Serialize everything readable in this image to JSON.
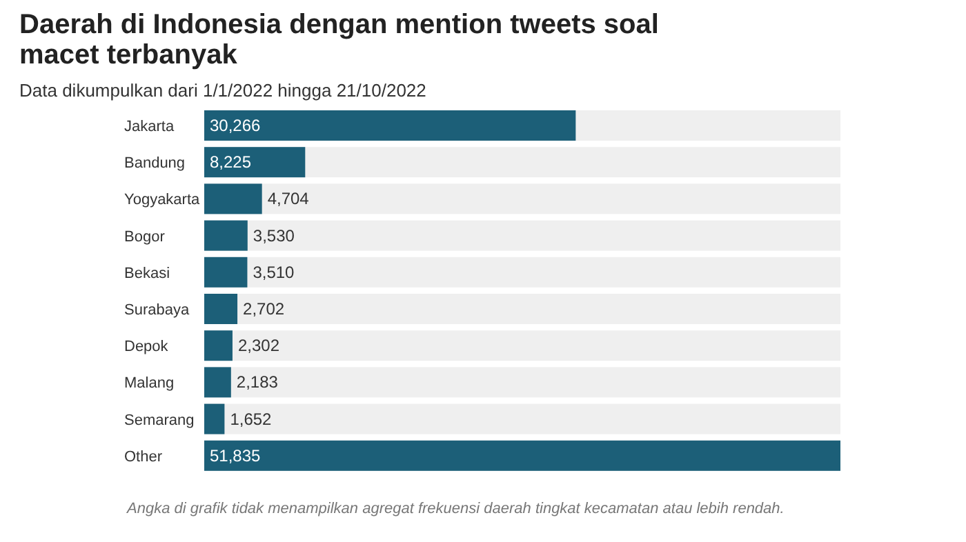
{
  "chart_data": {
    "type": "bar",
    "orientation": "horizontal",
    "title": "Daerah di Indonesia dengan mention tweets soal macet terbanyak",
    "subtitle": "Data dikumpulkan dari 1/1/2022 hingga 21/10/2022",
    "categories": [
      "Jakarta",
      "Bandung",
      "Yogyakarta",
      "Bogor",
      "Bekasi",
      "Surabaya",
      "Depok",
      "Malang",
      "Semarang",
      "Other"
    ],
    "values": [
      30266,
      8225,
      4704,
      3530,
      3510,
      2702,
      2302,
      2183,
      1652,
      51835
    ],
    "value_labels": [
      "30,266",
      "8,225",
      "4,704",
      "3,530",
      "3,510",
      "2,702",
      "2,302",
      "2,183",
      "1,652",
      "51,835"
    ],
    "color": "#1c5f78",
    "annotations": [
      "Angka di grafik tidak menampilkan agregat frekuensi daerah tingkat kecamatan atau lebih rendah."
    ]
  }
}
